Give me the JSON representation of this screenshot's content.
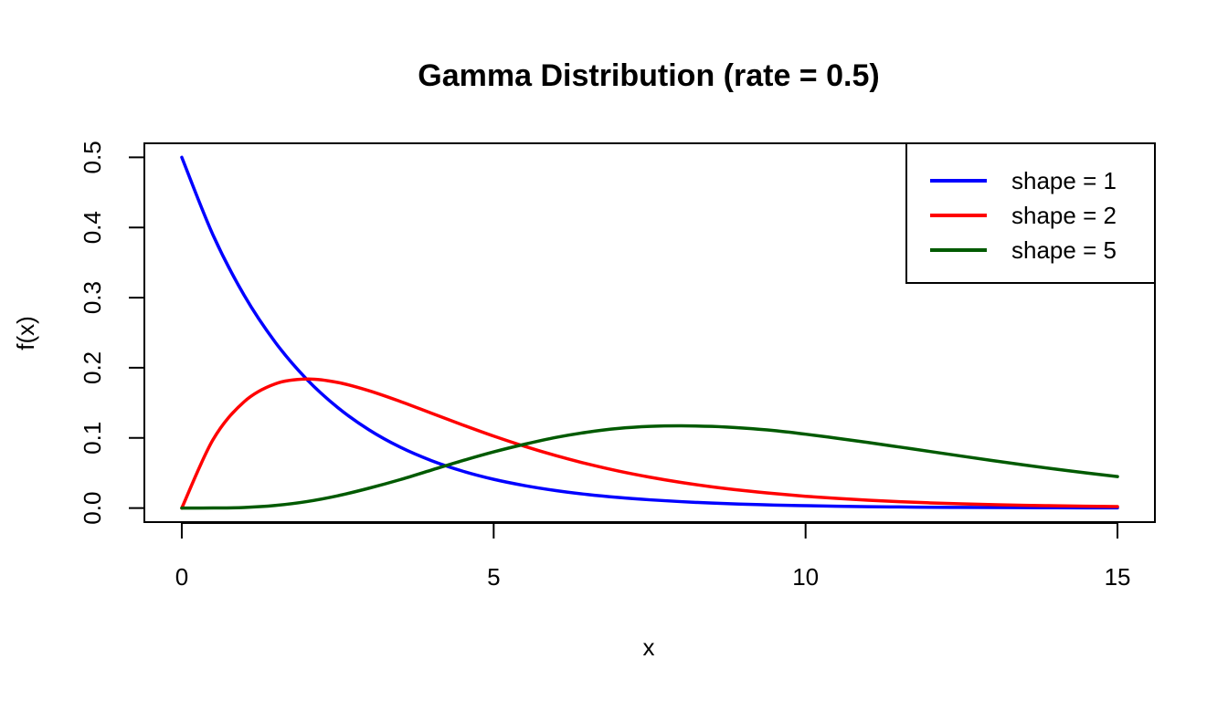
{
  "chart_data": {
    "type": "line",
    "title": "Gamma Distribution (rate = 0.5)",
    "xlabel": "x",
    "ylabel": "f(x)",
    "xlim": [
      -0.6,
      15.6
    ],
    "ylim": [
      -0.02,
      0.52
    ],
    "x_ticks": [
      0,
      5,
      10,
      15
    ],
    "x_tick_labels": [
      "0",
      "5",
      "10",
      "15"
    ],
    "y_ticks": [
      0,
      0.1,
      0.2,
      0.3,
      0.4,
      0.5
    ],
    "y_tick_labels": [
      "0.0",
      "0.1",
      "0.2",
      "0.3",
      "0.4",
      "0.5"
    ],
    "grid": false,
    "legend_position": "top-right",
    "x": [
      0,
      0.5,
      1,
      1.5,
      2,
      2.5,
      3,
      3.5,
      4,
      4.5,
      5,
      5.5,
      6,
      6.5,
      7,
      7.5,
      8,
      8.5,
      9,
      9.5,
      10,
      10.5,
      11,
      11.5,
      12,
      12.5,
      13,
      13.5,
      14,
      14.5,
      15
    ],
    "series": [
      {
        "name": "shape = 1",
        "color": "#0000ff",
        "values": [
          0.5,
          0.3894,
          0.3033,
          0.2362,
          0.1839,
          0.1433,
          0.1116,
          0.0869,
          0.0677,
          0.0527,
          0.041,
          0.032,
          0.0249,
          0.0194,
          0.0151,
          0.0118,
          0.0092,
          0.0071,
          0.0056,
          0.0043,
          0.0034,
          0.0026,
          0.002,
          0.0016,
          0.0012,
          0.001,
          0.0008,
          0.0006,
          0.0005,
          0.0004,
          0.0003
        ]
      },
      {
        "name": "shape = 2",
        "color": "#ff0000",
        "values": [
          0,
          0.0974,
          0.1516,
          0.1771,
          0.1839,
          0.1791,
          0.1673,
          0.1521,
          0.1353,
          0.1186,
          0.1026,
          0.0879,
          0.0747,
          0.063,
          0.0528,
          0.0441,
          0.0366,
          0.0303,
          0.025,
          0.0206,
          0.0168,
          0.0138,
          0.0112,
          0.0091,
          0.0074,
          0.006,
          0.0049,
          0.0039,
          0.0032,
          0.0026,
          0.0021
        ]
      },
      {
        "name": "shape = 5",
        "color": "#005a00",
        "values": [
          0,
          0.0001,
          0.0008,
          0.0037,
          0.0092,
          0.0175,
          0.0283,
          0.0405,
          0.0541,
          0.0676,
          0.0801,
          0.0911,
          0.1008,
          0.1082,
          0.1135,
          0.1164,
          0.1172,
          0.1164,
          0.114,
          0.1104,
          0.1053,
          0.0996,
          0.0935,
          0.0871,
          0.0806,
          0.0741,
          0.0677,
          0.0615,
          0.0556,
          0.0501,
          0.0449
        ]
      }
    ]
  }
}
